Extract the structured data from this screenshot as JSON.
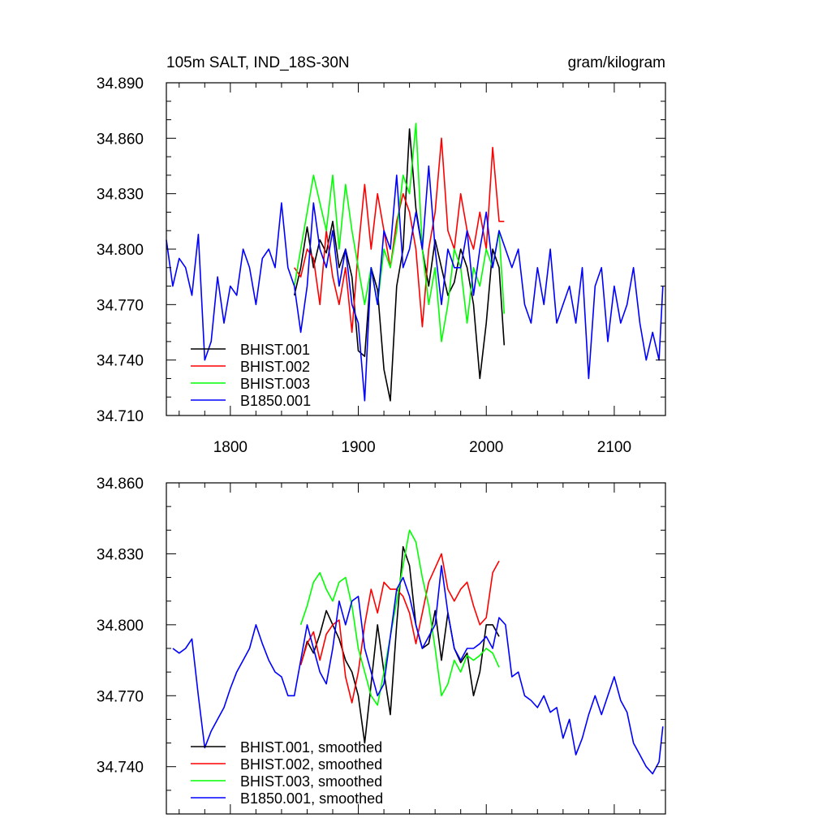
{
  "chart_data": [
    {
      "type": "line",
      "title": "105m SALT, IND_18S-30N",
      "units": "gram/kilogram",
      "xlabel": "",
      "ylabel": "",
      "xlim": [
        1750,
        2140
      ],
      "ylim": [
        34.71,
        34.89
      ],
      "xticks": [
        1800,
        1900,
        2000,
        2100
      ],
      "xtick_labels": [
        "1800",
        "1900",
        "2000",
        "2100"
      ],
      "yticks": [
        34.71,
        34.74,
        34.77,
        34.8,
        34.83,
        34.86,
        34.89
      ],
      "ytick_labels": [
        "34.710",
        "34.740",
        "34.770",
        "34.800",
        "34.830",
        "34.860",
        "34.890"
      ],
      "legend_position": "bottom-left",
      "series": [
        {
          "name": "BHIST.001",
          "color": "#000000",
          "x": [
            1850,
            1855,
            1860,
            1865,
            1870,
            1875,
            1880,
            1885,
            1890,
            1895,
            1900,
            1905,
            1910,
            1915,
            1920,
            1925,
            1930,
            1935,
            1940,
            1945,
            1950,
            1955,
            1960,
            1965,
            1970,
            1975,
            1980,
            1985,
            1990,
            1995,
            2000,
            2005,
            2010,
            2014
          ],
          "values": [
            34.775,
            34.79,
            34.812,
            34.79,
            34.805,
            34.798,
            34.815,
            34.79,
            34.8,
            34.785,
            34.745,
            34.742,
            34.79,
            34.778,
            34.735,
            34.718,
            34.78,
            34.8,
            34.865,
            34.822,
            34.8,
            34.78,
            34.805,
            34.79,
            34.775,
            34.782,
            34.8,
            34.79,
            34.77,
            34.73,
            34.76,
            34.8,
            34.79,
            34.748
          ]
        },
        {
          "name": "BHIST.002",
          "color": "#ff0000",
          "x": [
            1850,
            1855,
            1860,
            1865,
            1870,
            1875,
            1880,
            1885,
            1890,
            1895,
            1900,
            1905,
            1910,
            1915,
            1920,
            1925,
            1930,
            1935,
            1940,
            1945,
            1950,
            1955,
            1960,
            1965,
            1970,
            1975,
            1980,
            1985,
            1990,
            1995,
            2000,
            2005,
            2010,
            2014
          ],
          "values": [
            34.79,
            34.785,
            34.8,
            34.795,
            34.77,
            34.81,
            34.785,
            34.77,
            34.79,
            34.755,
            34.8,
            34.835,
            34.8,
            34.83,
            34.81,
            34.79,
            34.815,
            34.83,
            34.82,
            34.8,
            34.758,
            34.8,
            34.82,
            34.86,
            34.81,
            34.8,
            34.83,
            34.81,
            34.8,
            34.82,
            34.8,
            34.855,
            34.815,
            34.815
          ]
        },
        {
          "name": "BHIST.003",
          "color": "#00ff00",
          "x": [
            1850,
            1855,
            1860,
            1865,
            1870,
            1875,
            1880,
            1885,
            1890,
            1895,
            1900,
            1905,
            1910,
            1915,
            1920,
            1925,
            1930,
            1935,
            1940,
            1945,
            1950,
            1955,
            1960,
            1965,
            1970,
            1975,
            1980,
            1985,
            1990,
            1995,
            2000,
            2005,
            2010,
            2014
          ],
          "values": [
            34.78,
            34.8,
            34.82,
            34.84,
            34.825,
            34.81,
            34.84,
            34.8,
            34.835,
            34.81,
            34.79,
            34.77,
            34.79,
            34.77,
            34.8,
            34.79,
            34.81,
            34.84,
            34.83,
            34.868,
            34.8,
            34.77,
            34.79,
            34.75,
            34.77,
            34.8,
            34.79,
            34.76,
            34.79,
            34.78,
            34.8,
            34.79,
            34.81,
            34.765
          ]
        },
        {
          "name": "B1850.001",
          "color": "#0000ff",
          "x": [
            1750,
            1755,
            1760,
            1765,
            1770,
            1775,
            1780,
            1785,
            1790,
            1795,
            1800,
            1805,
            1810,
            1815,
            1820,
            1825,
            1830,
            1835,
            1840,
            1845,
            1850,
            1855,
            1860,
            1865,
            1870,
            1875,
            1880,
            1885,
            1890,
            1895,
            1900,
            1905,
            1910,
            1915,
            1920,
            1925,
            1930,
            1935,
            1940,
            1945,
            1950,
            1955,
            1960,
            1965,
            1970,
            1975,
            1980,
            1985,
            1990,
            1995,
            2000,
            2005,
            2010,
            2015,
            2020,
            2025,
            2030,
            2035,
            2040,
            2045,
            2050,
            2055,
            2060,
            2065,
            2070,
            2075,
            2080,
            2085,
            2090,
            2095,
            2100,
            2105,
            2110,
            2115,
            2120,
            2125,
            2130,
            2135,
            2138
          ],
          "values": [
            34.805,
            34.78,
            34.795,
            34.79,
            34.775,
            34.808,
            34.74,
            34.75,
            34.785,
            34.76,
            34.78,
            34.775,
            34.8,
            34.79,
            34.77,
            34.795,
            34.8,
            34.79,
            34.825,
            34.79,
            34.78,
            34.755,
            34.78,
            34.825,
            34.8,
            34.79,
            34.81,
            34.78,
            34.8,
            34.77,
            34.76,
            34.718,
            34.79,
            34.77,
            34.81,
            34.8,
            34.84,
            34.79,
            34.8,
            34.82,
            34.8,
            34.845,
            34.8,
            34.77,
            34.8,
            34.79,
            34.79,
            34.81,
            34.775,
            34.8,
            34.82,
            34.79,
            34.81,
            34.8,
            34.79,
            34.8,
            34.77,
            34.76,
            34.79,
            34.77,
            34.8,
            34.76,
            34.77,
            34.78,
            34.76,
            34.79,
            34.73,
            34.78,
            34.79,
            34.75,
            34.78,
            34.76,
            34.77,
            34.79,
            34.76,
            34.74,
            34.755,
            34.74,
            34.78
          ]
        }
      ]
    },
    {
      "type": "line",
      "title": "",
      "xlabel": "",
      "ylabel": "",
      "xlim": [
        1750,
        2140
      ],
      "ylim": [
        34.72,
        34.86
      ],
      "xticks": [
        1800,
        1900,
        2000,
        2100
      ],
      "xtick_labels": [],
      "yticks": [
        34.74,
        34.77,
        34.8,
        34.83,
        34.86
      ],
      "ytick_labels": [
        "34.740",
        "34.770",
        "34.800",
        "34.830",
        "34.860"
      ],
      "legend_position": "bottom-left",
      "series": [
        {
          "name": "BHIST.001, smoothed",
          "color": "#000000",
          "x": [
            1855,
            1860,
            1865,
            1870,
            1875,
            1880,
            1885,
            1890,
            1895,
            1900,
            1905,
            1910,
            1915,
            1920,
            1925,
            1930,
            1935,
            1940,
            1945,
            1950,
            1955,
            1960,
            1965,
            1970,
            1975,
            1980,
            1985,
            1990,
            1995,
            2000,
            2005,
            2010
          ],
          "values": [
            34.783,
            34.793,
            34.788,
            34.796,
            34.806,
            34.8,
            34.794,
            34.785,
            34.78,
            34.77,
            34.75,
            34.775,
            34.8,
            34.78,
            34.762,
            34.8,
            34.833,
            34.825,
            34.8,
            34.79,
            34.792,
            34.806,
            34.785,
            34.805,
            34.79,
            34.784,
            34.788,
            34.77,
            34.78,
            34.8,
            34.8,
            34.795
          ]
        },
        {
          "name": "BHIST.002, smoothed",
          "color": "#ff0000",
          "x": [
            1855,
            1860,
            1865,
            1870,
            1875,
            1880,
            1885,
            1890,
            1895,
            1900,
            1905,
            1910,
            1915,
            1920,
            1925,
            1930,
            1935,
            1940,
            1945,
            1950,
            1955,
            1960,
            1965,
            1970,
            1975,
            1980,
            1985,
            1990,
            1995,
            2000,
            2005,
            2010
          ],
          "values": [
            34.783,
            34.792,
            34.797,
            34.785,
            34.796,
            34.8,
            34.802,
            34.778,
            34.767,
            34.78,
            34.8,
            34.815,
            34.805,
            34.818,
            34.815,
            34.815,
            34.812,
            34.805,
            34.792,
            34.805,
            34.818,
            34.824,
            34.83,
            34.815,
            34.81,
            34.815,
            34.818,
            34.808,
            34.8,
            34.803,
            34.822,
            34.827
          ]
        },
        {
          "name": "BHIST.003, smoothed",
          "color": "#00ff00",
          "x": [
            1855,
            1860,
            1865,
            1870,
            1875,
            1880,
            1885,
            1890,
            1895,
            1900,
            1905,
            1910,
            1915,
            1920,
            1925,
            1930,
            1935,
            1940,
            1945,
            1950,
            1955,
            1960,
            1965,
            1970,
            1975,
            1980,
            1985,
            1990,
            1995,
            2000,
            2005,
            2010
          ],
          "values": [
            34.8,
            34.808,
            34.818,
            34.822,
            34.815,
            34.81,
            34.818,
            34.82,
            34.808,
            34.79,
            34.78,
            34.77,
            34.766,
            34.78,
            34.795,
            34.81,
            34.825,
            34.84,
            34.835,
            34.82,
            34.808,
            34.79,
            34.77,
            34.775,
            34.785,
            34.78,
            34.787,
            34.785,
            34.787,
            34.79,
            34.788,
            34.782
          ]
        },
        {
          "name": "B1850.001, smoothed",
          "color": "#0000ff",
          "x": [
            1755,
            1760,
            1765,
            1770,
            1775,
            1780,
            1785,
            1790,
            1795,
            1800,
            1805,
            1810,
            1815,
            1820,
            1825,
            1830,
            1835,
            1840,
            1845,
            1850,
            1855,
            1860,
            1865,
            1870,
            1875,
            1880,
            1885,
            1890,
            1895,
            1900,
            1905,
            1910,
            1915,
            1920,
            1925,
            1930,
            1935,
            1940,
            1945,
            1950,
            1955,
            1960,
            1965,
            1970,
            1975,
            1980,
            1985,
            1990,
            1995,
            2000,
            2005,
            2010,
            2015,
            2020,
            2025,
            2030,
            2035,
            2040,
            2045,
            2050,
            2055,
            2060,
            2065,
            2070,
            2075,
            2080,
            2085,
            2090,
            2095,
            2100,
            2105,
            2110,
            2115,
            2120,
            2125,
            2130,
            2135,
            2138
          ],
          "values": [
            34.79,
            34.788,
            34.79,
            34.794,
            34.77,
            34.748,
            34.755,
            34.76,
            34.765,
            34.773,
            34.78,
            34.785,
            34.79,
            34.8,
            34.792,
            34.785,
            34.78,
            34.778,
            34.77,
            34.77,
            34.785,
            34.8,
            34.79,
            34.78,
            34.775,
            34.79,
            34.81,
            34.8,
            34.81,
            34.812,
            34.79,
            34.78,
            34.77,
            34.775,
            34.795,
            34.815,
            34.82,
            34.812,
            34.8,
            34.79,
            34.795,
            34.8,
            34.825,
            34.805,
            34.79,
            34.785,
            34.79,
            34.79,
            34.792,
            34.795,
            34.79,
            34.803,
            34.8,
            34.778,
            34.78,
            34.77,
            34.768,
            34.765,
            34.77,
            34.763,
            34.765,
            34.752,
            34.76,
            34.745,
            34.752,
            34.762,
            34.77,
            34.762,
            34.77,
            34.778,
            34.768,
            34.763,
            34.75,
            34.745,
            34.74,
            34.737,
            34.742,
            34.757
          ]
        }
      ]
    }
  ]
}
